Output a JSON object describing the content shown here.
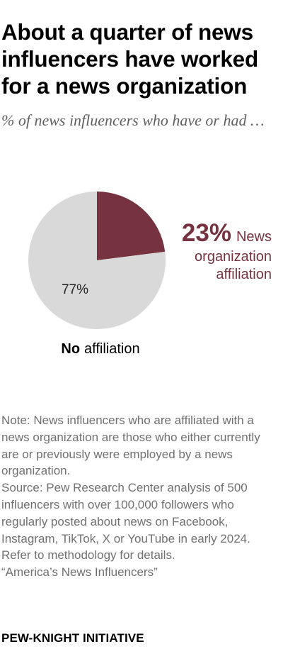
{
  "title": "About a quarter of news influencers have worked for a news organization",
  "subtitle": "% of news influencers who have or had …",
  "chart_data": {
    "type": "pie",
    "slices": [
      {
        "name": "News organization affiliation",
        "value": 23,
        "value_label": "23%",
        "label_lines": [
          "News",
          "organization",
          "affiliation"
        ],
        "color": "#76323f"
      },
      {
        "name": "No affiliation",
        "value": 77,
        "value_label": "77%",
        "label_bold": "No",
        "label_rest": "affiliation",
        "color": "#d9d9d9"
      }
    ]
  },
  "note": {
    "note_text": "Note: News influencers who are affiliated with a news organization are those who either currently are or previously were employed by a news organization.",
    "source_text": "Source: Pew Research Center analysis of 500 influencers with over 100,000 followers who regularly posted about news on Facebook, Instagram, TikTok, X or YouTube in early 2024. Refer to methodology for details.",
    "report_text": "“America’s News Influencers”"
  },
  "footer": "PEW-KNIGHT INITIATIVE",
  "colors": {
    "accent": "#76323f",
    "neutral": "#d9d9d9",
    "note_text": "#707070",
    "subtitle_text": "#5f5f5f"
  }
}
